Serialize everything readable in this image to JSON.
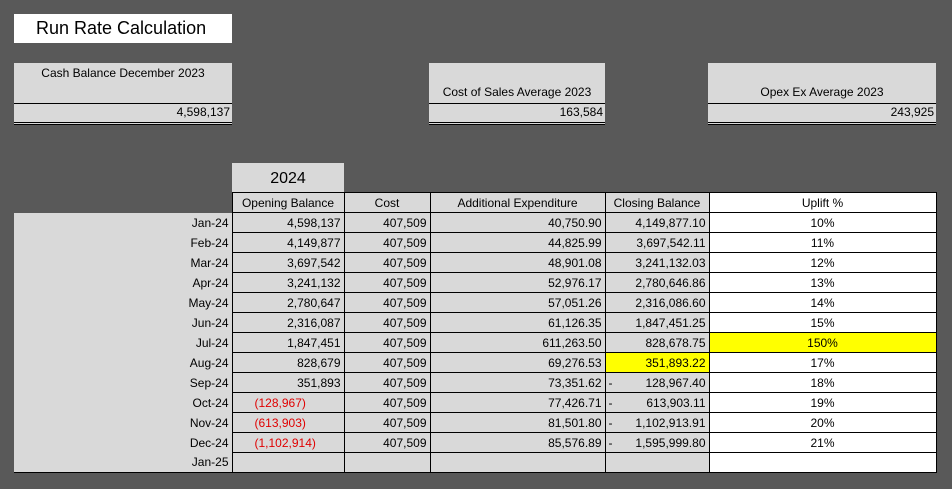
{
  "title": "Run Rate Calculation",
  "summary": {
    "cash": {
      "label": "Cash Balance December 2023",
      "value": "4,598,137"
    },
    "cost_of_sales": {
      "label": "Cost of Sales Average 2023",
      "value": "163,584"
    },
    "opex": {
      "label": "Opex Ex Average 2023",
      "value": "243,925"
    }
  },
  "year": "2024",
  "columns": {
    "opening": "Opening Balance",
    "cost": "Cost",
    "additional": "Additional Expenditure",
    "closing": "Closing Balance",
    "uplift": "Uplift %"
  },
  "rows": [
    {
      "month": "Jan-24",
      "opening": "4,598,137",
      "cost": "407,509",
      "additional": "40,750.90",
      "closing": "4,149,877.10",
      "uplift": "10%"
    },
    {
      "month": "Feb-24",
      "opening": "4,149,877",
      "cost": "407,509",
      "additional": "44,825.99",
      "closing": "3,697,542.11",
      "uplift": "11%"
    },
    {
      "month": "Mar-24",
      "opening": "3,697,542",
      "cost": "407,509",
      "additional": "48,901.08",
      "closing": "3,241,132.03",
      "uplift": "12%"
    },
    {
      "month": "Apr-24",
      "opening": "3,241,132",
      "cost": "407,509",
      "additional": "52,976.17",
      "closing": "2,780,646.86",
      "uplift": "13%"
    },
    {
      "month": "May-24",
      "opening": "2,780,647",
      "cost": "407,509",
      "additional": "57,051.26",
      "closing": "2,316,086.60",
      "uplift": "14%"
    },
    {
      "month": "Jun-24",
      "opening": "2,316,087",
      "cost": "407,509",
      "additional": "61,126.35",
      "closing": "1,847,451.25",
      "uplift": "15%"
    },
    {
      "month": "Jul-24",
      "opening": "1,847,451",
      "cost": "407,509",
      "additional": "611,263.50",
      "closing": "828,678.75",
      "uplift": "150%"
    },
    {
      "month": "Aug-24",
      "opening": "828,679",
      "cost": "407,509",
      "additional": "69,276.53",
      "closing": "351,893.22",
      "uplift": "17%"
    },
    {
      "month": "Sep-24",
      "opening": "351,893",
      "cost": "407,509",
      "additional": "73,351.62",
      "closing": "128,967.40",
      "uplift": "18%"
    },
    {
      "month": "Oct-24",
      "opening": "(128,967)",
      "cost": "407,509",
      "additional": "77,426.71",
      "closing": "613,903.11",
      "uplift": "19%"
    },
    {
      "month": "Nov-24",
      "opening": "(613,903)",
      "cost": "407,509",
      "additional": "81,501.80",
      "closing": "1,102,913.91",
      "uplift": "20%"
    },
    {
      "month": "Dec-24",
      "opening": "(1,102,914)",
      "cost": "407,509",
      "additional": "85,576.89",
      "closing": "1,595,999.80",
      "uplift": "21%"
    },
    {
      "month": "Jan-25",
      "opening": "",
      "cost": "",
      "additional": "",
      "closing": "",
      "uplift": ""
    }
  ],
  "neg_prefix": "-",
  "colors": {
    "background": "#595959",
    "cell": "#d9d9d9",
    "highlight": "#ffff00",
    "negative": "#e00000"
  }
}
